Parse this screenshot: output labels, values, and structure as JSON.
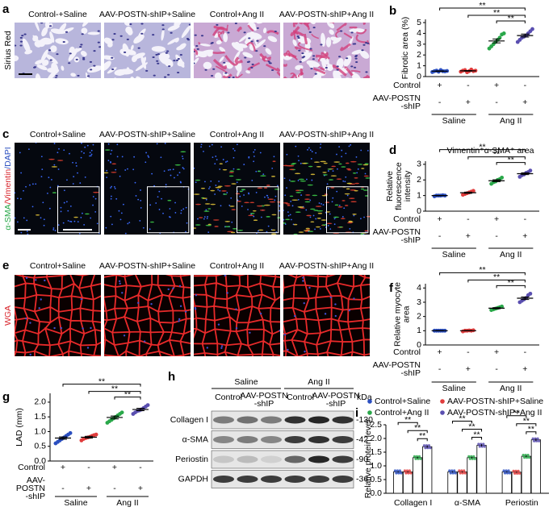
{
  "image_panels": [
    {
      "letter": "a",
      "row_label": [
        "Sirius Red"
      ],
      "titles": [
        "Control-+Saline",
        "AAV-POSTN-shIP+Saline",
        "Control+Ang II",
        "AAV-POSTN-shIP+Ang II"
      ]
    },
    {
      "letter": "c",
      "row_label": [
        "α-SMA",
        "/Vimentin",
        "/DAPI"
      ],
      "titles": [
        "Control+Saline",
        "AAV-POSTN-shIP+Saline",
        "Control+Ang II",
        "AAV-POSTN-shIP+Ang II"
      ]
    },
    {
      "letter": "e",
      "row_label": [
        "WGA"
      ],
      "titles": [
        "Control+Saline",
        "AAV-POSTN-shIP+Saline",
        "Control+Ang II",
        "AAV-POSTN-shIP+Ang II"
      ]
    }
  ],
  "blot": {
    "letter": "h",
    "groups": [
      "Saline",
      "Ang II"
    ],
    "lanes": [
      [
        "Control"
      ],
      [
        "AAV-POSTN",
        "-shIP"
      ],
      [
        "Control"
      ],
      [
        "AAV-POSTN",
        "-shIP"
      ]
    ],
    "unit": "kDa",
    "rows": [
      {
        "name": "Collagen I",
        "size": "-130"
      },
      {
        "name": "α-SMA",
        "size": "-42"
      },
      {
        "name": "Periostin",
        "size": "-90"
      },
      {
        "name": "GAPDH",
        "size": "-36"
      }
    ]
  },
  "chart_data": [
    {
      "type": "dot",
      "letter": "b",
      "y_label": [
        "Fibrotic area (%)"
      ],
      "ylim": [
        0,
        5.3
      ],
      "yticks": [
        0,
        1,
        2,
        3,
        4,
        5
      ],
      "series": [
        {
          "color": "#2b4fc0",
          "values": [
            0.42,
            0.5,
            0.55,
            0.45,
            0.6,
            0.5,
            0.48,
            0.52
          ],
          "mean": 0.5,
          "error": 0.03
        },
        {
          "color": "#e03c3c",
          "values": [
            0.45,
            0.55,
            0.6,
            0.4,
            0.5,
            0.65,
            0.5,
            0.55
          ],
          "mean": 0.53,
          "error": 0.03
        },
        {
          "color": "#2aa84a",
          "values": [
            2.6,
            2.8,
            3.0,
            3.2,
            3.4,
            3.6,
            3.9,
            4.0
          ],
          "mean": 3.3,
          "error": 0.18
        },
        {
          "color": "#5a4fb0",
          "values": [
            3.2,
            3.4,
            3.6,
            3.7,
            3.8,
            4.0,
            4.2,
            4.4
          ],
          "mean": 3.8,
          "error": 0.14
        }
      ],
      "conditions": [
        {
          "label": [
            "Control"
          ],
          "signs": [
            "+",
            "-",
            "+",
            "-"
          ]
        },
        {
          "label": [
            "AAV-POSTN",
            "-shIP"
          ],
          "signs": [
            "-",
            "+",
            "-",
            "+"
          ]
        }
      ],
      "groups": [
        "Saline",
        "Ang II"
      ],
      "significance": [
        "**",
        "**",
        "**"
      ]
    },
    {
      "type": "dot",
      "letter": "d",
      "title": "Vimentin⁺α-SMA⁺ area",
      "y_label": [
        "Relative",
        "fluorescence",
        "intensity"
      ],
      "ylim": [
        0,
        3.2
      ],
      "yticks": [
        0,
        1,
        2,
        3
      ],
      "series": [
        {
          "color": "#2b4fc0",
          "values": [
            0.95,
            1,
            1,
            1,
            1.02,
            1
          ],
          "mean": 1,
          "error": 0.01
        },
        {
          "color": "#e03c3c",
          "values": [
            1.05,
            1.1,
            1.15,
            1.2,
            1.25,
            1.3
          ],
          "mean": 1.18,
          "error": 0.04
        },
        {
          "color": "#2aa84a",
          "values": [
            1.75,
            1.85,
            1.9,
            2.0,
            2.05,
            2.15
          ],
          "mean": 1.95,
          "error": 0.06
        },
        {
          "color": "#5a4fb0",
          "values": [
            2.2,
            2.3,
            2.35,
            2.45,
            2.5,
            2.6
          ],
          "mean": 2.4,
          "error": 0.06
        }
      ],
      "conditions": [
        {
          "label": [
            "Control"
          ],
          "signs": [
            "+",
            "-",
            "+",
            "-"
          ]
        },
        {
          "label": [
            "AAV-POSTN",
            "-shIP"
          ],
          "signs": [
            "-",
            "+",
            "-",
            "+"
          ]
        }
      ],
      "groups": [
        "Saline",
        "Ang II"
      ],
      "significance": [
        "**",
        "**",
        "**"
      ]
    },
    {
      "type": "dot",
      "letter": "f",
      "y_label": [
        "Relative myocyte",
        "area"
      ],
      "ylim": [
        0,
        4.3
      ],
      "yticks": [
        0,
        1,
        2,
        3,
        4
      ],
      "series": [
        {
          "color": "#2b4fc0",
          "values": [
            1,
            1,
            1,
            1,
            1,
            1
          ],
          "mean": 1,
          "error": 0.01
        },
        {
          "color": "#e03c3c",
          "values": [
            0.95,
            1,
            1,
            1.02,
            1,
            1.03
          ],
          "mean": 1,
          "error": 0.01
        },
        {
          "color": "#2aa84a",
          "values": [
            2.45,
            2.5,
            2.55,
            2.6,
            2.65,
            2.7
          ],
          "mean": 2.58,
          "error": 0.04
        },
        {
          "color": "#5a4fb0",
          "values": [
            3.0,
            3.1,
            3.2,
            3.3,
            3.5,
            3.6
          ],
          "mean": 3.28,
          "error": 0.09
        }
      ],
      "conditions": [
        {
          "label": [
            "Control"
          ],
          "signs": [
            "+",
            "-",
            "+",
            "-"
          ]
        },
        {
          "label": [
            "AAV-POSTN",
            "-shIP"
          ],
          "signs": [
            "-",
            "+",
            "-",
            "+"
          ]
        }
      ],
      "groups": [
        "Saline",
        "Ang II"
      ],
      "significance": [
        "**",
        "**",
        "**"
      ]
    },
    {
      "type": "dot",
      "letter": "g",
      "y_label": [
        "LAD (mm)"
      ],
      "ylim": [
        0,
        2.3
      ],
      "yticks": [
        {
          "value": 0,
          "label": "0.0"
        },
        {
          "value": 0.5,
          "label": "0.5"
        },
        {
          "value": 1,
          "label": "1.0"
        },
        {
          "value": 1.5,
          "label": "1.5"
        },
        {
          "value": 2,
          "label": "2.0"
        }
      ],
      "series": [
        {
          "color": "#2b4fc0",
          "values": [
            0.6,
            0.65,
            0.7,
            0.75,
            0.8,
            0.85,
            0.9,
            0.95
          ],
          "mean": 0.78,
          "error": 0.04
        },
        {
          "color": "#e03c3c",
          "values": [
            0.7,
            0.75,
            0.78,
            0.8,
            0.82,
            0.85,
            0.88,
            0.9
          ],
          "mean": 0.81,
          "error": 0.03
        },
        {
          "color": "#2aa84a",
          "values": [
            1.3,
            1.35,
            1.4,
            1.45,
            1.5,
            1.55,
            1.6,
            1.65
          ],
          "mean": 1.48,
          "error": 0.05
        },
        {
          "color": "#5a4fb0",
          "values": [
            1.6,
            1.65,
            1.7,
            1.72,
            1.75,
            1.8,
            1.85,
            1.9
          ],
          "mean": 1.75,
          "error": 0.04
        }
      ],
      "conditions": [
        {
          "label": [
            "Control"
          ],
          "signs": [
            "+",
            "-",
            "+",
            "-"
          ]
        },
        {
          "label": [
            "AAV-",
            "POSTN",
            "-shIP"
          ],
          "signs": [
            "-",
            "+",
            "-",
            "+"
          ]
        }
      ],
      "groups": [
        "Saline",
        "Ang II"
      ],
      "significance": [
        "**",
        "**",
        "**"
      ]
    },
    {
      "type": "bar",
      "letter": "i",
      "y_label": [
        "Relative protein level"
      ],
      "ylim": [
        0,
        2.5
      ],
      "yticks": [
        {
          "value": 0,
          "label": "0.0"
        },
        {
          "value": 0.5,
          "label": "0.5"
        },
        {
          "value": 1,
          "label": "1.0"
        },
        {
          "value": 1.5,
          "label": "1.5"
        },
        {
          "value": 2,
          "label": "2.0"
        },
        {
          "value": 2.5,
          "label": "2.5"
        }
      ],
      "categories": [
        "Collagen I",
        "α-SMA",
        "Periostin"
      ],
      "series": [
        {
          "name": "Control+Saline",
          "color": "#2b4fc0",
          "values": [
            0.78,
            0.78,
            0.78
          ],
          "error": [
            0.02,
            0.02,
            0.02
          ]
        },
        {
          "name": "AAV-POSTN-shIP+Saline",
          "color": "#e03c3c",
          "values": [
            0.78,
            0.78,
            0.77
          ],
          "error": [
            0.02,
            0.02,
            0.02
          ]
        },
        {
          "name": "Control+Ang II",
          "color": "#2aa84a",
          "values": [
            1.3,
            1.3,
            1.35
          ],
          "error": [
            0.03,
            0.03,
            0.03
          ]
        },
        {
          "name": "AAV-POSTN-shIP+Ang II",
          "color": "#5a4fb0",
          "values": [
            1.7,
            1.75,
            1.95
          ],
          "error": [
            0.04,
            0.04,
            0.04
          ]
        }
      ],
      "significance": [
        [
          "**",
          "**",
          "**"
        ],
        [
          "**",
          "**",
          "**"
        ],
        [
          "**",
          "**",
          "**"
        ]
      ]
    }
  ]
}
